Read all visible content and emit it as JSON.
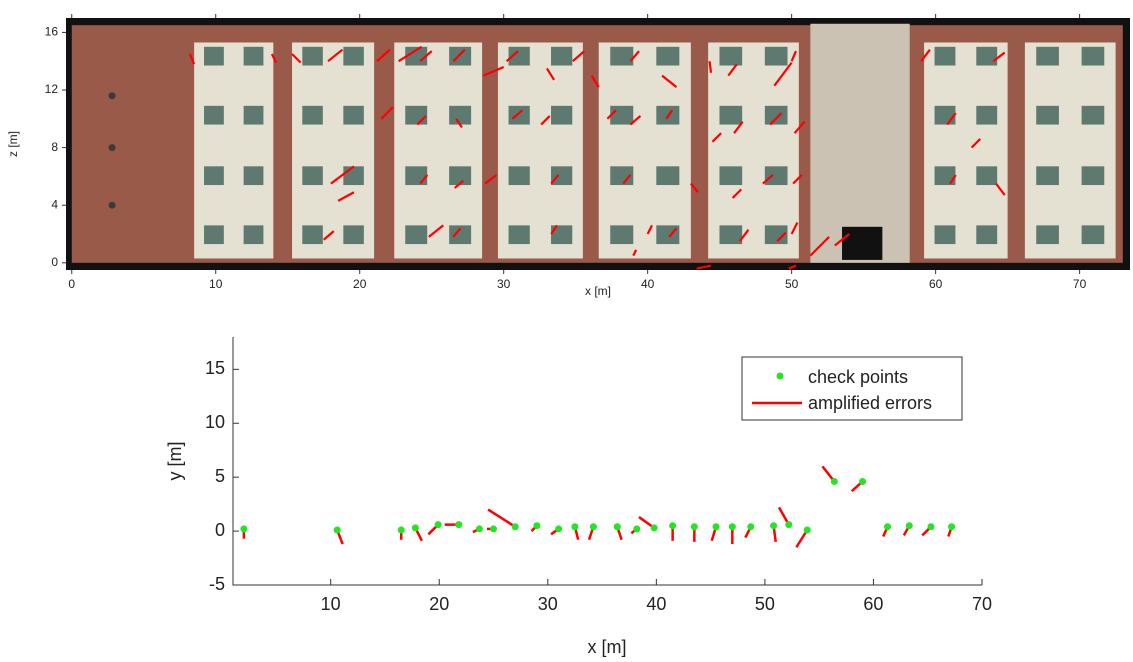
{
  "chart_data": [
    {
      "type": "facade",
      "xlabel": "x [m]",
      "ylabel": "z [m]",
      "xlim": [
        -0.4,
        73.5
      ],
      "ylim": [
        -0.5,
        17
      ],
      "xticks": [
        0,
        10,
        20,
        30,
        40,
        50,
        60,
        70
      ],
      "yticks": [
        0,
        4,
        8,
        12,
        16
      ],
      "error_color": "#ff0000",
      "segments": {
        "x": [
          8.2,
          13.9,
          15.3,
          17.8,
          21.2,
          22.7,
          24.2,
          26.5,
          28.6,
          30.2,
          33.0,
          34.8,
          36.1,
          38.8,
          41.0,
          44.3,
          45.6,
          48.8,
          50.0,
          59.0,
          64.0,
          21.5,
          24.0,
          26.7,
          30.6,
          32.6,
          37.2,
          38.8,
          41.3,
          44.5,
          46.0,
          48.5,
          50.2,
          60.8,
          62.5,
          18.0,
          18.5,
          24.2,
          26.6,
          28.7,
          33.3,
          38.3,
          43.0,
          45.9,
          48.0,
          50.1,
          61.0,
          64.2,
          17.5,
          24.8,
          26.5,
          33.3,
          40.0,
          41.5,
          46.4,
          49.0,
          50.0,
          51.3,
          53.0,
          39.0,
          43.4,
          49.8
        ],
        "z": [
          14.5,
          14.5,
          14.5,
          14.0,
          14.0,
          14.0,
          14.0,
          14.0,
          13.0,
          14.0,
          13.5,
          14.0,
          13.0,
          14.0,
          13.0,
          14.0,
          13.0,
          12.3,
          14.0,
          14.0,
          14.0,
          10.0,
          9.6,
          10.0,
          10.0,
          9.6,
          10.0,
          9.6,
          10.0,
          8.4,
          9.0,
          9.6,
          9.0,
          9.6,
          8.0,
          5.5,
          4.3,
          5.5,
          5.2,
          5.5,
          5.5,
          5.5,
          5.5,
          4.5,
          5.5,
          5.5,
          5.5,
          5.5,
          1.6,
          1.8,
          1.8,
          2.0,
          2.0,
          1.8,
          1.5,
          1.5,
          2.0,
          0.5,
          1.2,
          0.5,
          -0.4,
          -0.4
        ],
        "u": [
          0.3,
          0.3,
          0.6,
          1.0,
          0.9,
          1.6,
          0.8,
          0.8,
          1.4,
          0.8,
          0.5,
          0.8,
          0.5,
          0.6,
          1.0,
          0.1,
          0.6,
          1.2,
          0.3,
          0.6,
          0.8,
          0.8,
          0.6,
          0.4,
          0.7,
          0.6,
          0.6,
          0.7,
          0.4,
          0.6,
          0.6,
          0.8,
          0.7,
          0.6,
          0.6,
          1.6,
          1.1,
          0.5,
          0.6,
          0.8,
          0.5,
          0.5,
          0.5,
          0.6,
          0.7,
          0.6,
          0.4,
          0.6,
          0.7,
          1.0,
          0.5,
          0.4,
          0.3,
          0.5,
          0.6,
          0.6,
          0.4,
          1.3,
          1.0,
          0.2,
          1.0,
          0.5
        ],
        "w": [
          -0.7,
          -0.6,
          -0.6,
          0.8,
          0.8,
          1.0,
          0.7,
          0.8,
          0.6,
          0.7,
          -0.8,
          0.7,
          -0.8,
          0.7,
          -0.8,
          -0.8,
          0.8,
          1.6,
          0.7,
          0.8,
          0.6,
          0.8,
          0.6,
          -0.6,
          0.6,
          0.6,
          0.6,
          0.6,
          0.6,
          0.6,
          0.8,
          0.8,
          0.8,
          0.8,
          0.6,
          1.2,
          0.6,
          0.6,
          0.5,
          0.6,
          0.6,
          0.6,
          -0.6,
          0.6,
          0.6,
          0.6,
          0.6,
          -0.8,
          0.6,
          0.8,
          0.6,
          0.6,
          0.6,
          0.6,
          0.8,
          0.6,
          0.8,
          1.3,
          0.8,
          0.4,
          0.2,
          0.2
        ]
      }
    },
    {
      "type": "scatter",
      "xlabel": "x [m]",
      "ylabel": "y [m]",
      "xlim": [
        1,
        70
      ],
      "ylim": [
        -5,
        18
      ],
      "xticks": [
        10,
        20,
        30,
        40,
        50,
        60,
        70
      ],
      "yticks": [
        -5,
        0,
        5,
        10,
        15
      ],
      "series": [
        {
          "name": "check points",
          "color": "#22e622",
          "x": [
            2.0,
            10.6,
            16.5,
            17.8,
            19.9,
            21.8,
            23.7,
            25.0,
            27.0,
            29.0,
            31.0,
            32.5,
            34.2,
            36.4,
            38.2,
            39.8,
            41.5,
            43.5,
            45.5,
            47.0,
            48.7,
            50.8,
            52.2,
            53.9,
            56.4,
            59.0,
            61.3,
            63.3,
            65.3,
            67.2
          ],
          "values": [
            0.2,
            0.1,
            0.1,
            0.3,
            0.6,
            0.6,
            0.2,
            0.2,
            0.4,
            0.5,
            0.2,
            0.4,
            0.4,
            0.4,
            0.2,
            0.3,
            0.5,
            0.4,
            0.4,
            0.4,
            0.4,
            0.5,
            0.6,
            0.1,
            4.6,
            4.6,
            0.4,
            0.5,
            0.4,
            0.4
          ]
        },
        {
          "name": "amplified errors",
          "color": "#ff0000",
          "dx": [
            0.0,
            0.5,
            0.0,
            0.6,
            -0.9,
            -1.3,
            -0.6,
            -0.6,
            -2.5,
            -0.5,
            -0.7,
            0.3,
            -0.4,
            0.4,
            -0.5,
            -1.4,
            0.0,
            0.0,
            -0.4,
            0.0,
            -0.5,
            0.2,
            -0.9,
            -1.0,
            -1.1,
            -1.0,
            -0.4,
            -0.5,
            -0.8,
            -0.3
          ],
          "dy": [
            -0.9,
            -1.3,
            -0.9,
            -1.2,
            -0.9,
            0.0,
            -0.3,
            0.0,
            1.6,
            -0.5,
            -0.5,
            -1.2,
            -1.2,
            -1.2,
            -0.4,
            1.0,
            -1.4,
            -1.4,
            -1.3,
            -1.6,
            -1.0,
            -1.5,
            1.6,
            -1.6,
            1.4,
            -0.9,
            -0.9,
            -0.9,
            -0.8,
            -0.9
          ]
        }
      ]
    }
  ]
}
